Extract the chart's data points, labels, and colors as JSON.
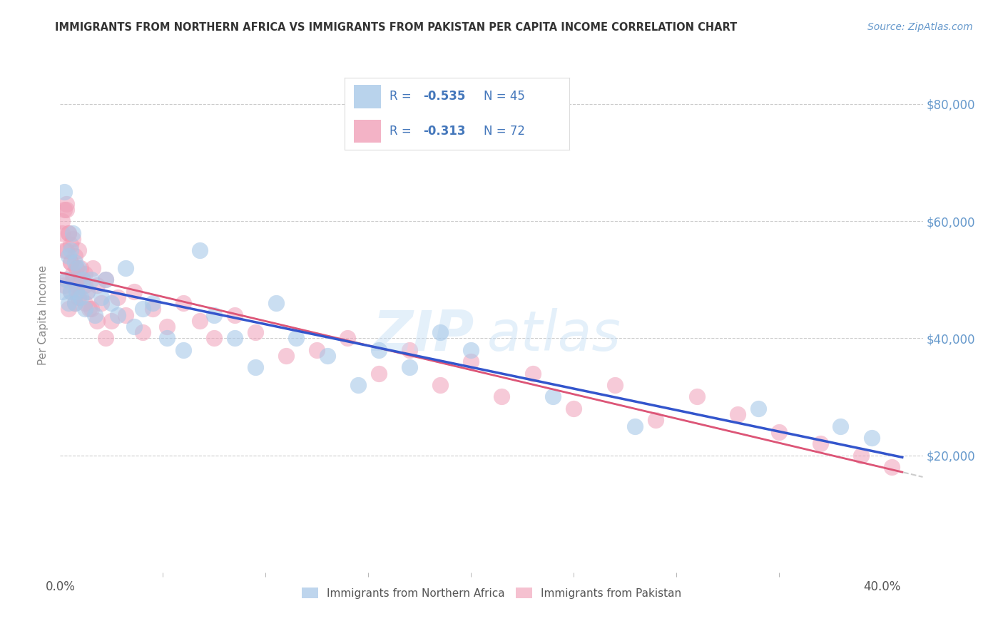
{
  "title": "IMMIGRANTS FROM NORTHERN AFRICA VS IMMIGRANTS FROM PAKISTAN PER CAPITA INCOME CORRELATION CHART",
  "source": "Source: ZipAtlas.com",
  "ylabel": "Per Capita Income",
  "watermark_zip": "ZIP",
  "watermark_atlas": "atlas",
  "legend_label1": "Immigrants from Northern Africa",
  "legend_label2": "Immigrants from Pakistan",
  "xlim": [
    0.0,
    0.42
  ],
  "ylim": [
    0,
    88000
  ],
  "yticks": [
    0,
    20000,
    40000,
    60000,
    80000
  ],
  "ytick_labels": [
    "",
    "$20,000",
    "$40,000",
    "$60,000",
    "$80,000"
  ],
  "color_blue": "#a8c8e8",
  "color_pink": "#f0a0b8",
  "color_blue_line": "#3355cc",
  "color_pink_line": "#dd5577",
  "color_dashed": "#c0c0c0",
  "background": "#ffffff",
  "title_color": "#333333",
  "source_color": "#6699cc",
  "legend_text_color": "#4477bb",
  "ylabel_color": "#888888",
  "ytick_color": "#6699cc",
  "xtick_color": "#555555",
  "series1_x": [
    0.001,
    0.002,
    0.003,
    0.004,
    0.004,
    0.005,
    0.005,
    0.006,
    0.007,
    0.007,
    0.008,
    0.009,
    0.01,
    0.011,
    0.012,
    0.013,
    0.015,
    0.017,
    0.02,
    0.022,
    0.025,
    0.028,
    0.032,
    0.036,
    0.04,
    0.045,
    0.052,
    0.06,
    0.068,
    0.075,
    0.085,
    0.095,
    0.105,
    0.115,
    0.13,
    0.145,
    0.155,
    0.17,
    0.185,
    0.2,
    0.24,
    0.28,
    0.34,
    0.38,
    0.395
  ],
  "series1_y": [
    48000,
    65000,
    50000,
    54000,
    46000,
    55000,
    48000,
    58000,
    46000,
    53000,
    48000,
    52000,
    47000,
    50000,
    45000,
    48000,
    50000,
    44000,
    47000,
    50000,
    46000,
    44000,
    52000,
    42000,
    45000,
    46000,
    40000,
    38000,
    55000,
    44000,
    40000,
    35000,
    46000,
    40000,
    37000,
    32000,
    38000,
    35000,
    41000,
    38000,
    30000,
    25000,
    28000,
    25000,
    23000
  ],
  "series2_x": [
    0.001,
    0.002,
    0.002,
    0.003,
    0.003,
    0.004,
    0.004,
    0.005,
    0.005,
    0.006,
    0.006,
    0.007,
    0.007,
    0.008,
    0.008,
    0.009,
    0.009,
    0.01,
    0.011,
    0.012,
    0.013,
    0.014,
    0.016,
    0.018,
    0.02,
    0.022,
    0.025,
    0.028,
    0.032,
    0.036,
    0.04,
    0.045,
    0.052,
    0.06,
    0.068,
    0.075,
    0.085,
    0.095,
    0.11,
    0.125,
    0.14,
    0.155,
    0.17,
    0.185,
    0.2,
    0.215,
    0.23,
    0.25,
    0.27,
    0.29,
    0.31,
    0.33,
    0.35,
    0.37,
    0.39,
    0.405,
    0.003,
    0.005,
    0.008,
    0.012,
    0.001,
    0.002,
    0.003,
    0.004,
    0.005,
    0.006,
    0.008,
    0.01,
    0.012,
    0.015,
    0.018,
    0.022
  ],
  "series2_y": [
    60000,
    49000,
    62000,
    55000,
    50000,
    58000,
    45000,
    53000,
    48000,
    57000,
    51000,
    54000,
    46000,
    52000,
    49000,
    55000,
    47000,
    50000,
    50000,
    51000,
    48000,
    45000,
    52000,
    49000,
    46000,
    50000,
    43000,
    47000,
    44000,
    48000,
    41000,
    45000,
    42000,
    46000,
    43000,
    40000,
    44000,
    41000,
    37000,
    38000,
    40000,
    34000,
    38000,
    32000,
    36000,
    30000,
    34000,
    28000,
    32000,
    26000,
    30000,
    27000,
    24000,
    22000,
    20000,
    18000,
    63000,
    56000,
    52000,
    46000,
    58000,
    55000,
    62000,
    58000,
    53000,
    50000,
    48000,
    52000,
    49000,
    45000,
    43000,
    40000
  ]
}
